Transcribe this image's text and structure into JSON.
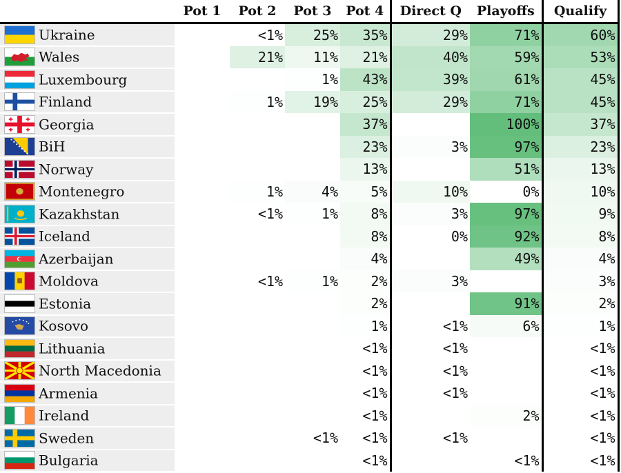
{
  "chart_data": {
    "type": "table",
    "columns": [
      "Pot 1",
      "Pot 2",
      "Pot 3",
      "Pot 4",
      "Direct Q",
      "Playoffs",
      "Qualify"
    ],
    "rows": [
      {
        "team": "Ukraine",
        "flag": "ukraine-flag-icon",
        "cells": [
          "",
          "<1%",
          "25%",
          "35%",
          "29%",
          "71%",
          "60%"
        ],
        "values": [
          null,
          0.5,
          25,
          35,
          29,
          71,
          60
        ]
      },
      {
        "team": "Wales",
        "flag": "wales-flag-icon",
        "cells": [
          "",
          "21%",
          "11%",
          "21%",
          "40%",
          "59%",
          "53%"
        ],
        "values": [
          null,
          21,
          11,
          21,
          40,
          59,
          53
        ]
      },
      {
        "team": "Luxembourg",
        "flag": "luxembourg-flag-icon",
        "cells": [
          "",
          "",
          "1%",
          "43%",
          "39%",
          "61%",
          "45%"
        ],
        "values": [
          null,
          null,
          1,
          43,
          39,
          61,
          45
        ]
      },
      {
        "team": "Finland",
        "flag": "finland-flag-icon",
        "cells": [
          "",
          "1%",
          "19%",
          "25%",
          "29%",
          "71%",
          "45%"
        ],
        "values": [
          null,
          1,
          19,
          25,
          29,
          71,
          45
        ]
      },
      {
        "team": "Georgia",
        "flag": "georgia-flag-icon",
        "cells": [
          "",
          "",
          "",
          "37%",
          "",
          "100%",
          "37%"
        ],
        "values": [
          null,
          null,
          null,
          37,
          null,
          100,
          37
        ]
      },
      {
        "team": "BiH",
        "flag": "bih-flag-icon",
        "cells": [
          "",
          "",
          "",
          "23%",
          "3%",
          "97%",
          "23%"
        ],
        "values": [
          null,
          null,
          null,
          23,
          3,
          97,
          23
        ]
      },
      {
        "team": "Norway",
        "flag": "norway-flag-icon",
        "cells": [
          "",
          "",
          "",
          "13%",
          "",
          "51%",
          "13%"
        ],
        "values": [
          null,
          null,
          null,
          13,
          null,
          51,
          13
        ]
      },
      {
        "team": "Montenegro",
        "flag": "montenegro-flag-icon",
        "cells": [
          "",
          "1%",
          "4%",
          "5%",
          "10%",
          "0%",
          "10%"
        ],
        "values": [
          null,
          1,
          4,
          5,
          10,
          0,
          10
        ]
      },
      {
        "team": "Kazakhstan",
        "flag": "kazakhstan-flag-icon",
        "cells": [
          "",
          "<1%",
          "1%",
          "8%",
          "3%",
          "97%",
          "9%"
        ],
        "values": [
          null,
          0.5,
          1,
          8,
          3,
          97,
          9
        ]
      },
      {
        "team": "Iceland",
        "flag": "iceland-flag-icon",
        "cells": [
          "",
          "",
          "",
          "8%",
          "0%",
          "92%",
          "8%"
        ],
        "values": [
          null,
          null,
          null,
          8,
          0,
          92,
          8
        ]
      },
      {
        "team": "Azerbaijan",
        "flag": "azerbaijan-flag-icon",
        "cells": [
          "",
          "",
          "",
          "4%",
          "",
          "49%",
          "4%"
        ],
        "values": [
          null,
          null,
          null,
          4,
          null,
          49,
          4
        ]
      },
      {
        "team": "Moldova",
        "flag": "moldova-flag-icon",
        "cells": [
          "",
          "<1%",
          "1%",
          "2%",
          "3%",
          "",
          "3%"
        ],
        "values": [
          null,
          0.5,
          1,
          2,
          3,
          null,
          3
        ]
      },
      {
        "team": "Estonia",
        "flag": "estonia-flag-icon",
        "cells": [
          "",
          "",
          "",
          "2%",
          "",
          "91%",
          "2%"
        ],
        "values": [
          null,
          null,
          null,
          2,
          null,
          91,
          2
        ]
      },
      {
        "team": "Kosovo",
        "flag": "kosovo-flag-icon",
        "cells": [
          "",
          "",
          "",
          "1%",
          "<1%",
          "6%",
          "1%"
        ],
        "values": [
          null,
          null,
          null,
          1,
          0.5,
          6,
          1
        ]
      },
      {
        "team": "Lithuania",
        "flag": "lithuania-flag-icon",
        "cells": [
          "",
          "",
          "",
          "<1%",
          "<1%",
          "",
          "<1%"
        ],
        "values": [
          null,
          null,
          null,
          0.5,
          0.5,
          null,
          0.5
        ]
      },
      {
        "team": "North Macedonia",
        "flag": "north-macedonia-flag-icon",
        "cells": [
          "",
          "",
          "",
          "<1%",
          "<1%",
          "",
          "<1%"
        ],
        "values": [
          null,
          null,
          null,
          0.5,
          0.5,
          null,
          0.5
        ]
      },
      {
        "team": "Armenia",
        "flag": "armenia-flag-icon",
        "cells": [
          "",
          "",
          "",
          "<1%",
          "<1%",
          "",
          "<1%"
        ],
        "values": [
          null,
          null,
          null,
          0.5,
          0.5,
          null,
          0.5
        ]
      },
      {
        "team": "Ireland",
        "flag": "ireland-flag-icon",
        "cells": [
          "",
          "",
          "",
          "<1%",
          "",
          "2%",
          "<1%"
        ],
        "values": [
          null,
          null,
          null,
          0.5,
          null,
          2,
          0.5
        ]
      },
      {
        "team": "Sweden",
        "flag": "sweden-flag-icon",
        "cells": [
          "",
          "",
          "<1%",
          "<1%",
          "<1%",
          "",
          "<1%"
        ],
        "values": [
          null,
          null,
          0.5,
          0.5,
          0.5,
          null,
          0.5
        ]
      },
      {
        "team": "Bulgaria",
        "flag": "bulgaria-flag-icon",
        "cells": [
          "",
          "",
          "",
          "<1%",
          "",
          "<1%",
          "<1%"
        ],
        "values": [
          null,
          null,
          null,
          0.5,
          null,
          0.5,
          0.5
        ]
      }
    ],
    "color_scale": {
      "low": "#ffffff",
      "high": "#63be7b"
    }
  }
}
